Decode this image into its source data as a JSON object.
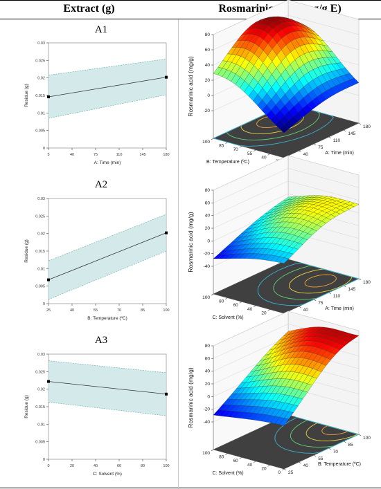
{
  "header": {
    "left": "Extract (g)",
    "right": "Rosmarinic Acid (mg/g E)"
  },
  "chart_data": [
    {
      "id": "A1",
      "type": "line",
      "label": "A1",
      "xlabel": "A: Time (min)",
      "ylabel": "Residue (g)",
      "xlim": [
        5,
        180
      ],
      "ylim": [
        0,
        0.03
      ],
      "xticks": [
        5,
        40,
        75,
        110,
        145,
        180
      ],
      "yticks": [
        0,
        0.005,
        0.01,
        0.015,
        0.02,
        0.025,
        0.03
      ],
      "ytick_labels": [
        "0",
        "0.005",
        "0.01",
        "0.015",
        "0.02",
        "0.025",
        "0.03"
      ],
      "x": [
        5,
        180
      ],
      "y": [
        0.0146,
        0.0202
      ],
      "ci_lower": [
        0.0085,
        0.0152
      ],
      "ci_upper": [
        0.0208,
        0.0254
      ],
      "points": [
        [
          5,
          0.0146
        ],
        [
          180,
          0.0202
        ]
      ]
    },
    {
      "id": "A2",
      "type": "line",
      "label": "A2",
      "xlabel": "B: Temperature (ºC)",
      "ylabel": "Residue (g)",
      "xlim": [
        25,
        100
      ],
      "ylim": [
        0,
        0.03
      ],
      "xticks": [
        25,
        40,
        55,
        70,
        85,
        100
      ],
      "yticks": [
        0,
        0.005,
        0.01,
        0.015,
        0.02,
        0.025,
        0.03
      ],
      "ytick_labels": [
        "0",
        "0.005",
        "0.01",
        "0.015",
        "0.02",
        "0.025",
        "0.03"
      ],
      "x": [
        25,
        100
      ],
      "y": [
        0.0068,
        0.0202
      ],
      "ci_lower": [
        0.0012,
        0.015
      ],
      "ci_upper": [
        0.0122,
        0.0255
      ],
      "points": [
        [
          25,
          0.0068
        ],
        [
          100,
          0.0202
        ]
      ]
    },
    {
      "id": "A3",
      "type": "line",
      "label": "A3",
      "xlabel": "C: Solvent (%)",
      "ylabel": "Residue (g)",
      "xlim": [
        0,
        100
      ],
      "ylim": [
        0,
        0.03
      ],
      "xticks": [
        0,
        20,
        40,
        60,
        80,
        100
      ],
      "yticks": [
        0,
        0.005,
        0.01,
        0.015,
        0.02,
        0.025,
        0.03
      ],
      "ytick_labels": [
        "0",
        "0.005",
        "0.01",
        "0.015",
        "0.02",
        "0.025",
        "0.03"
      ],
      "x": [
        0,
        100
      ],
      "y": [
        0.0222,
        0.0186
      ],
      "ci_lower": [
        0.0163,
        0.0124
      ],
      "ci_upper": [
        0.0281,
        0.0247
      ],
      "points": [
        [
          0,
          0.0222
        ],
        [
          100,
          0.0186
        ]
      ]
    },
    {
      "id": "B1",
      "type": "surface",
      "label": "B1",
      "zlabel": "Rosmarinic acid (mg/g)",
      "xlabel": "A: Time (min)",
      "ylabel": "B: Temperature (ºC)",
      "xlim": [
        5,
        180
      ],
      "ylim": [
        25,
        100
      ],
      "zlim": [
        -20,
        80
      ],
      "xticks": [
        5,
        40,
        75,
        110,
        145,
        180
      ],
      "yticks": [
        25,
        40,
        55,
        70,
        85,
        100
      ],
      "zticks": [
        -20,
        0,
        20,
        40,
        60,
        80
      ],
      "peak": [
        110,
        85,
        78
      ],
      "corners": {
        "x0y0": -28,
        "x1y0": -10,
        "x0y1": 10,
        "x1y1": 24
      }
    },
    {
      "id": "B2",
      "type": "surface",
      "label": "B2",
      "zlabel": "Rosmarinic acid (mg/g)",
      "xlabel": "A: Time (min)",
      "ylabel": "C: Solvent (%)",
      "xlim": [
        5,
        180
      ],
      "ylim": [
        0,
        100
      ],
      "zlim": [
        -40,
        80
      ],
      "xticks": [
        5,
        40,
        75,
        110,
        145,
        180
      ],
      "yticks": [
        0,
        20,
        40,
        60,
        80,
        100
      ],
      "zticks": [
        -40,
        -20,
        0,
        20,
        40,
        60,
        80
      ],
      "peak": [
        140,
        30,
        36
      ],
      "corners": {
        "x0y0": -10,
        "x1y0": 30,
        "x0y1": -30,
        "x1y1": 10
      }
    },
    {
      "id": "B3",
      "type": "surface",
      "label": "B3",
      "zlabel": "Rosmarinic acid (mg/g)",
      "xlabel": "B: Temperature (ºC)",
      "ylabel": "C: Solvent (%)",
      "xlim": [
        25,
        100
      ],
      "ylim": [
        0,
        100
      ],
      "zlim": [
        -40,
        80
      ],
      "xticks": [
        25,
        40,
        55,
        70,
        85,
        100
      ],
      "yticks": [
        0,
        20,
        40,
        60,
        80,
        100
      ],
      "zticks": [
        -40,
        -20,
        0,
        20,
        40,
        60,
        80
      ],
      "peak": [
        100,
        30,
        72
      ],
      "corners": {
        "x0y0": -18,
        "x1y0": 72,
        "x0y1": -30,
        "x1y1": 42
      }
    }
  ]
}
